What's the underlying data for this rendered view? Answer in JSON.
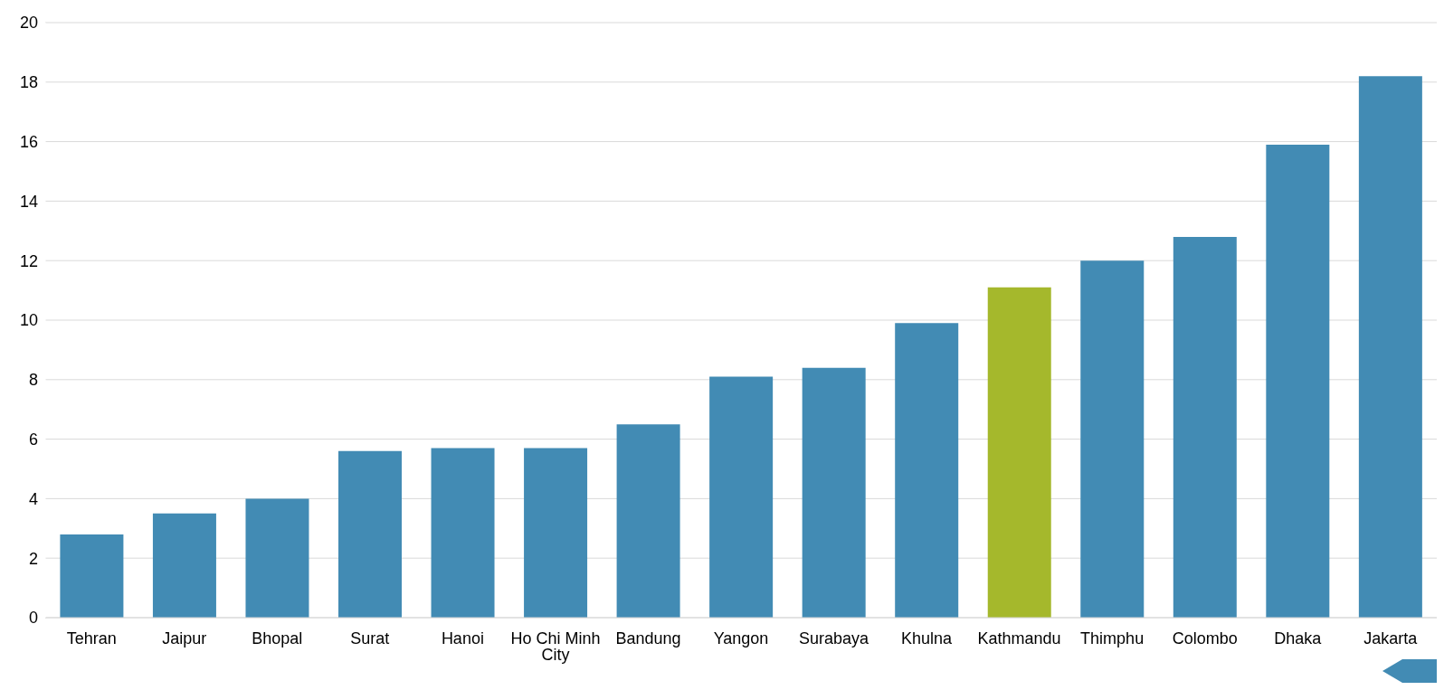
{
  "chart_data": {
    "type": "bar",
    "categories": [
      "Tehran",
      "Jaipur",
      "Bhopal",
      "Surat",
      "Hanoi",
      "Ho Chi Minh City",
      "Bandung",
      "Yangon",
      "Surabaya",
      "Khulna",
      "Kathmandu",
      "Thimphu",
      "Colombo",
      "Dhaka",
      "Jakarta"
    ],
    "values": [
      2.8,
      3.5,
      4.0,
      5.6,
      5.7,
      5.7,
      6.5,
      8.1,
      8.4,
      9.9,
      11.1,
      12.0,
      12.8,
      15.9,
      18.2
    ],
    "colors": [
      "#428bb4",
      "#428bb4",
      "#428bb4",
      "#428bb4",
      "#428bb4",
      "#428bb4",
      "#428bb4",
      "#428bb4",
      "#428bb4",
      "#428bb4",
      "#a5b82c",
      "#428bb4",
      "#428bb4",
      "#428bb4",
      "#428bb4"
    ],
    "ylim": [
      0,
      20
    ],
    "yticks": [
      0,
      2,
      4,
      6,
      8,
      10,
      12,
      14,
      16,
      18,
      20
    ],
    "grid": "y"
  }
}
